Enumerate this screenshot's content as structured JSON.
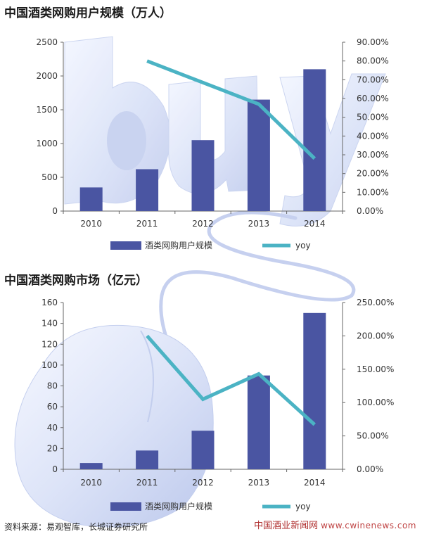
{
  "chart_data": [
    {
      "type": "bar",
      "title": "中国酒类网购用户规模（万人）",
      "categories": [
        "2010",
        "2011",
        "2012",
        "2013",
        "2014"
      ],
      "series": [
        {
          "name": "酒类网购用户规模",
          "type": "bar",
          "axis": "left",
          "values": [
            350,
            620,
            1050,
            1650,
            2100
          ],
          "color": "#4a55a2"
        },
        {
          "name": "yoy",
          "type": "line",
          "axis": "right",
          "values": [
            null,
            0.8,
            null,
            0.57,
            0.28
          ],
          "color": "#4bb3c4"
        }
      ],
      "ylim": [
        0,
        2500
      ],
      "yticks": [
        "0",
        "500",
        "1000",
        "1500",
        "2000",
        "2500"
      ],
      "y2lim": [
        0,
        0.9
      ],
      "y2ticks": [
        "0.00%",
        "10.00%",
        "20.00%",
        "30.00%",
        "40.00%",
        "50.00%",
        "60.00%",
        "70.00%",
        "80.00%",
        "90.00%"
      ],
      "legend": "bottom"
    },
    {
      "type": "bar",
      "title": "中国酒类网购市场（亿元）",
      "categories": [
        "2010",
        "2011",
        "2012",
        "2013",
        "2014"
      ],
      "series": [
        {
          "name": "酒类网购用户规模",
          "type": "bar",
          "axis": "left",
          "values": [
            6,
            18,
            37,
            90,
            150
          ],
          "color": "#4a55a2"
        },
        {
          "name": "yoy",
          "type": "line",
          "axis": "right",
          "values": [
            null,
            2.0,
            1.05,
            1.43,
            0.67
          ],
          "color": "#4bb3c4"
        }
      ],
      "ylim": [
        0,
        160
      ],
      "yticks": [
        "0",
        "20",
        "40",
        "60",
        "80",
        "100",
        "120",
        "140",
        "160"
      ],
      "y2lim": [
        0,
        2.5
      ],
      "y2ticks": [
        "0.00%",
        "50.00%",
        "100.00%",
        "150.00%",
        "200.00%",
        "250.00%"
      ],
      "legend": "bottom"
    }
  ],
  "footer": {
    "source": "资料来源：易观智库，长城证券研究所",
    "watermark_cn": "中国酒业新闻网",
    "watermark_url": "www.cwinenews.com"
  }
}
